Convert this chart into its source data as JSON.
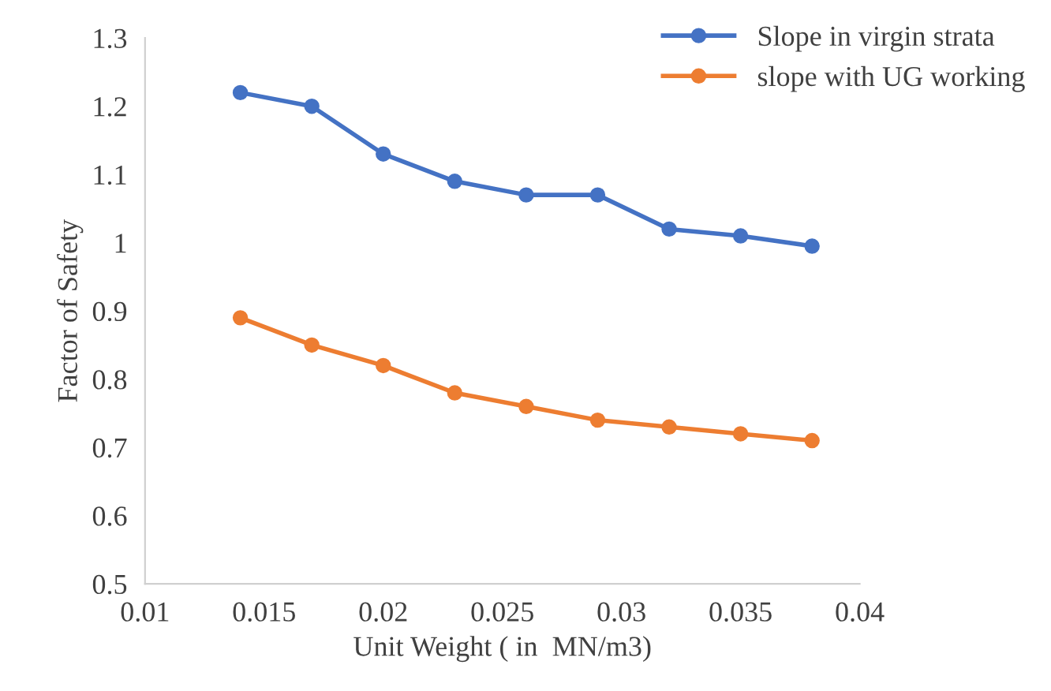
{
  "chart_data": {
    "type": "line",
    "xlabel": "Unit Weight ( in  MN/m3)",
    "ylabel": "Factor of Safety",
    "x": [
      0.014,
      0.017,
      0.02,
      0.023,
      0.026,
      0.029,
      0.032,
      0.035,
      0.038
    ],
    "series": [
      {
        "name": "Slope in virgin strata",
        "color": "#4472c4",
        "values": [
          1.22,
          1.2,
          1.13,
          1.09,
          1.07,
          1.07,
          1.02,
          1.01,
          0.995
        ]
      },
      {
        "name": "slope with UG working",
        "color": "#ed7d31",
        "values": [
          0.89,
          0.85,
          0.82,
          0.78,
          0.76,
          0.74,
          0.73,
          0.72,
          0.71
        ]
      }
    ],
    "xlim": [
      0.01,
      0.04
    ],
    "xticks": [
      0.01,
      0.015,
      0.02,
      0.025,
      0.03,
      0.035,
      0.04
    ],
    "ylim": [
      0.5,
      1.3
    ],
    "yticks": [
      0.5,
      0.6,
      0.7,
      0.8,
      0.9,
      1,
      1.1,
      1.2,
      1.3
    ],
    "grid": false,
    "legend": "top right",
    "marker": "circle",
    "line_style": "solid"
  }
}
